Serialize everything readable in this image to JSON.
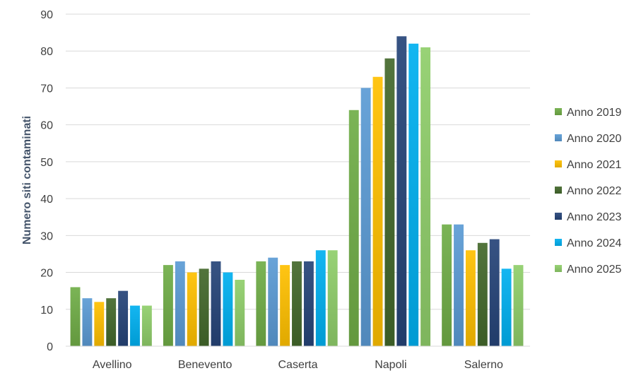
{
  "chart_data": {
    "type": "bar",
    "title": "",
    "xlabel": "",
    "ylabel": "Numero siti contaminati",
    "ylim": [
      0,
      90
    ],
    "yticks": [
      0,
      10,
      20,
      30,
      40,
      50,
      60,
      70,
      80,
      90
    ],
    "grid": true,
    "legend_position": "right",
    "categories": [
      "Avellino",
      "Benevento",
      "Caserta",
      "Napoli",
      "Salerno"
    ],
    "series": [
      {
        "name": "Anno 2019",
        "color": "#70ad47",
        "values": [
          16,
          22,
          23,
          64,
          33
        ]
      },
      {
        "name": "Anno 2020",
        "color": "#5b9bd5",
        "values": [
          13,
          23,
          24,
          70,
          33
        ]
      },
      {
        "name": "Anno 2021",
        "color": "#ffc000",
        "values": [
          12,
          20,
          22,
          73,
          26
        ]
      },
      {
        "name": "Anno 2022",
        "color": "#43682b",
        "values": [
          13,
          21,
          23,
          78,
          28
        ]
      },
      {
        "name": "Anno 2023",
        "color": "#264478",
        "values": [
          15,
          23,
          23,
          84,
          29
        ]
      },
      {
        "name": "Anno 2024",
        "color": "#00b0f0",
        "values": [
          11,
          20,
          26,
          82,
          21
        ]
      },
      {
        "name": "Anno 2025",
        "color": "#8fce6a",
        "values": [
          11,
          18,
          26,
          81,
          22
        ]
      }
    ]
  }
}
